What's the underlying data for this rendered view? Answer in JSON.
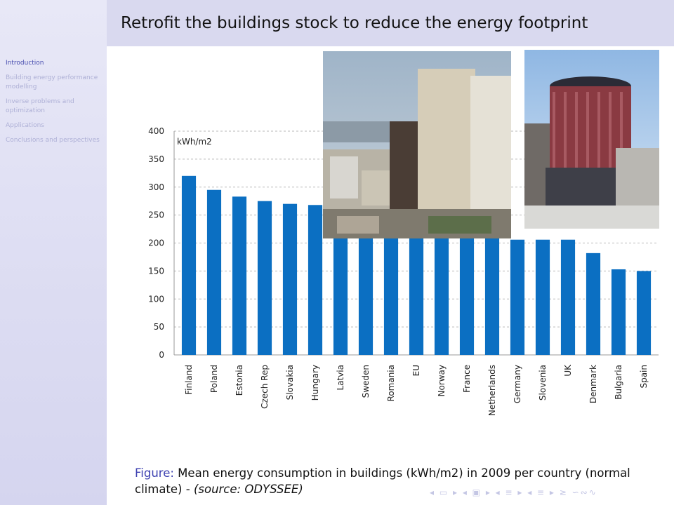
{
  "slide": {
    "title": "Retrofit the buildings stock to reduce the energy footprint"
  },
  "sidebar": {
    "items": [
      {
        "label": "Introduction",
        "active": true
      },
      {
        "label": "Building energy performance modelling",
        "active": false
      },
      {
        "label": "Inverse problems and optimization",
        "active": false
      },
      {
        "label": "Applications",
        "active": false
      },
      {
        "label": "Conclusions and perspectives",
        "active": false
      }
    ]
  },
  "caption": {
    "prefix": "Figure:",
    "text": " Mean energy consumption in buildings (kWh/m2) in 2009 per country (normal climate) - ",
    "source": "(source: ODYSSEE)"
  },
  "colors": {
    "bar": "#0b6fc2",
    "sidebar_bg": "#e3e3f5",
    "header_bg": "#d9d9ef",
    "figure_label": "#3b3fb0"
  },
  "photos": [
    {
      "name": "photo-highrise-towers",
      "icon": "city-towers-photo"
    },
    {
      "name": "photo-round-building",
      "icon": "cylindrical-building-photo"
    }
  ],
  "chart_data": {
    "type": "bar",
    "title": "",
    "ylabel": "kWh/m2",
    "xlabel": "",
    "ylim": [
      0,
      400
    ],
    "yticks": [
      0,
      50,
      100,
      150,
      200,
      250,
      300,
      350,
      400
    ],
    "grid": true,
    "categories": [
      "Finland",
      "Poland",
      "Estonia",
      "Czech Rep",
      "Slovakia",
      "Hungary",
      "Latvia",
      "Sweden",
      "Romania",
      "EU",
      "Norway",
      "France",
      "Netherlands",
      "Germany",
      "Slovenia",
      "UK",
      "Denmark",
      "Bulgaria",
      "Spain"
    ],
    "values": [
      320,
      295,
      283,
      275,
      270,
      268,
      210,
      210,
      210,
      210,
      210,
      210,
      210,
      206,
      206,
      206,
      182,
      153,
      150
    ]
  },
  "nav_symbols": "◂ ▭ ▸ ◂ ▣ ▸ ◂ ≡ ▸ ◂ ≡ ▸ ≥ ∽∾∿"
}
